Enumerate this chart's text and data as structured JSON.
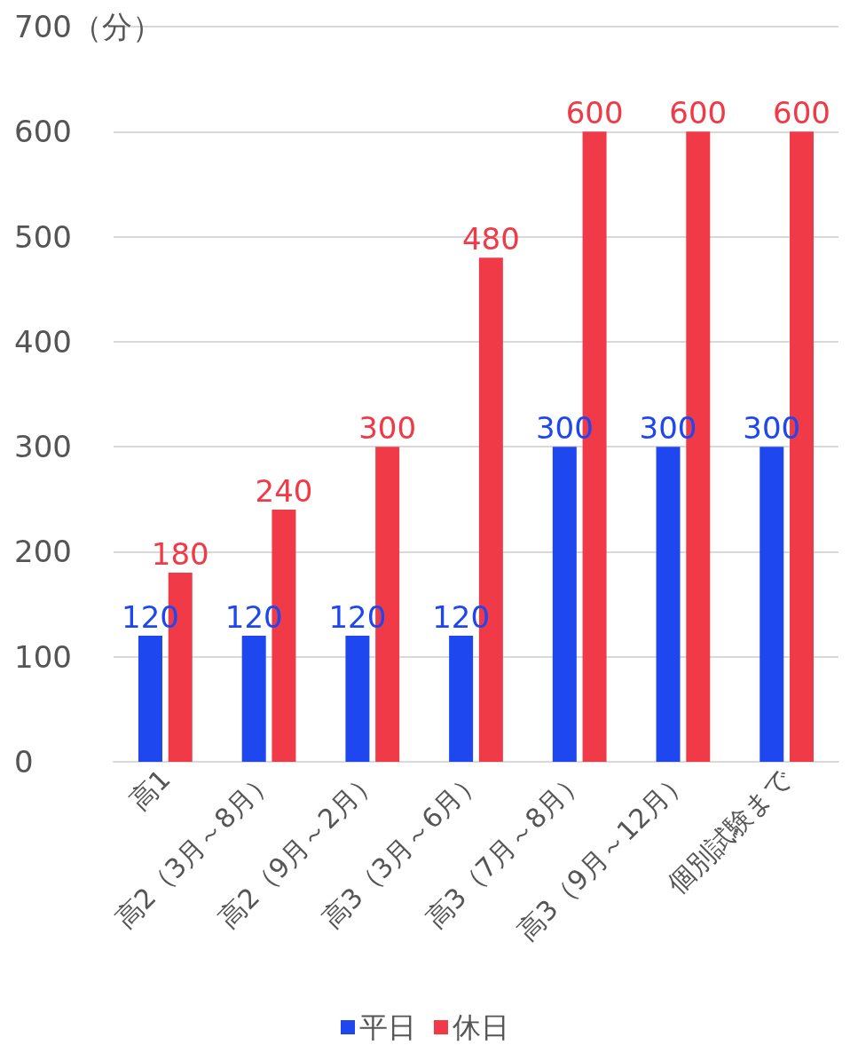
{
  "chart_data": {
    "type": "bar",
    "categories": [
      "高1",
      "高2（3月～8月）",
      "高2（9月～2月）",
      "高3（3月～6月）",
      "高3（7月～8月）",
      "高3（9月～12月）",
      "個別試験まで"
    ],
    "series": [
      {
        "name": "平日",
        "color": "#1f47f0",
        "values": [
          120,
          120,
          120,
          120,
          300,
          300,
          300
        ]
      },
      {
        "name": "休日",
        "color": "#f03a47",
        "values": [
          180,
          240,
          300,
          480,
          600,
          600,
          600
        ]
      }
    ],
    "ylim": [
      0,
      700
    ],
    "yticks": [
      0,
      100,
      200,
      300,
      400,
      500,
      600,
      {
        "value": 700,
        "label": "700（分）"
      }
    ],
    "grid": "y",
    "legend": "bottom",
    "data_labels": true
  }
}
